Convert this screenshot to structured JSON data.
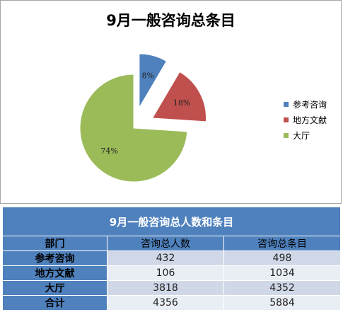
{
  "chart_data": {
    "type": "pie",
    "title": "9月一般咨询总条目",
    "categories": [
      "参考咨询",
      "地方文献",
      "大厅"
    ],
    "values": [
      498,
      1034,
      4352
    ],
    "percent_labels": [
      "8%",
      "18%",
      "74%"
    ],
    "colors": [
      "#4f81bd",
      "#c0504d",
      "#9bbb59"
    ],
    "exploded": true,
    "legend_position": "right"
  },
  "table": {
    "title": "9月一般咨询总人数和条目",
    "columns": [
      "部门",
      "咨询总人数",
      "咨询总条目"
    ],
    "rows": [
      [
        "参考咨询",
        "432",
        "498"
      ],
      [
        "地方文献",
        "106",
        "1034"
      ],
      [
        "大厅",
        "3818",
        "4352"
      ],
      [
        "合计",
        "4356",
        "5884"
      ]
    ]
  }
}
